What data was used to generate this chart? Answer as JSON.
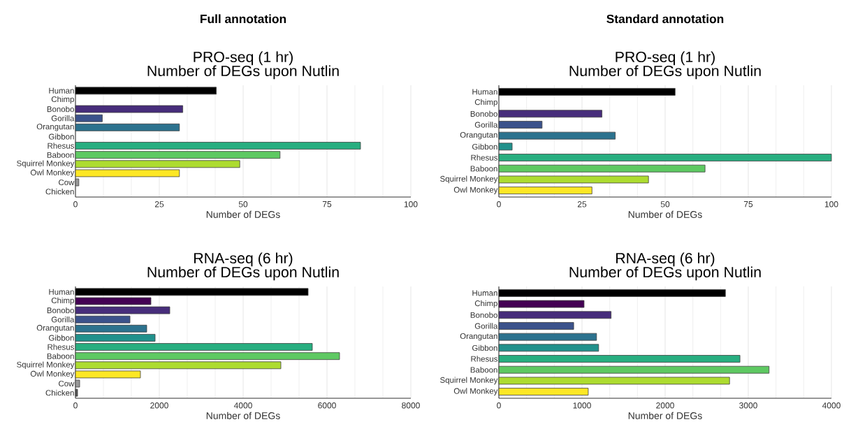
{
  "chart_data": [
    {
      "type": "bar",
      "orientation": "horizontal",
      "annotations": [
        "Full annotation"
      ],
      "title": "PRO-seq (1 hr)",
      "subtitle": "Number of DEGs upon Nutlin",
      "xlabel": "Number of DEGs",
      "categories": [
        "Human",
        "Chimp",
        "Bonobo",
        "Gorilla",
        "Orangutan",
        "Gibbon",
        "Rhesus",
        "Baboon",
        "Squirrel Monkey",
        "Owl Monkey",
        "Cow",
        "Chicken"
      ],
      "values": [
        42,
        null,
        32,
        8,
        31,
        null,
        85,
        61,
        49,
        31,
        1,
        null
      ],
      "colors": [
        "#000000",
        "#440154",
        "#472d7b",
        "#3b528b",
        "#2c728e",
        "#21918c",
        "#28ae80",
        "#5ec962",
        "#addc30",
        "#fde725",
        "#999999",
        "#555555"
      ],
      "xlim": [
        0,
        100
      ],
      "xticks": [
        0,
        25,
        50,
        75,
        100
      ],
      "grid": "x"
    },
    {
      "type": "bar",
      "orientation": "horizontal",
      "annotations": [
        "Standard annotation"
      ],
      "title": "PRO-seq (1 hr)",
      "subtitle": "Number of DEGs upon Nutlin",
      "xlabel": "Number of DEGs",
      "categories": [
        "Human",
        "Chimp",
        "Bonobo",
        "Gorilla",
        "Orangutan",
        "Gibbon",
        "Rhesus",
        "Baboon",
        "Squirrel Monkey",
        "Owl Monkey"
      ],
      "values": [
        53,
        null,
        31,
        13,
        35,
        4,
        100,
        62,
        45,
        28
      ],
      "colors": [
        "#000000",
        "#440154",
        "#472d7b",
        "#3b528b",
        "#2c728e",
        "#21918c",
        "#28ae80",
        "#5ec962",
        "#addc30",
        "#fde725"
      ],
      "xlim": [
        0,
        100
      ],
      "xticks": [
        0,
        25,
        50,
        75,
        100
      ],
      "grid": "x"
    },
    {
      "type": "bar",
      "orientation": "horizontal",
      "title": "RNA-seq (6 hr)",
      "subtitle": "Number of DEGs upon Nutlin",
      "xlabel": "Number of DEGs",
      "categories": [
        "Human",
        "Chimp",
        "Bonobo",
        "Gorilla",
        "Orangutan",
        "Gibbon",
        "Rhesus",
        "Baboon",
        "Squirrel Monkey",
        "Owl Monkey",
        "Cow",
        "Chicken"
      ],
      "values": [
        5550,
        1800,
        2250,
        1300,
        1700,
        1900,
        5650,
        6300,
        4900,
        1550,
        100,
        50
      ],
      "colors": [
        "#000000",
        "#440154",
        "#472d7b",
        "#3b528b",
        "#2c728e",
        "#21918c",
        "#28ae80",
        "#5ec962",
        "#addc30",
        "#fde725",
        "#999999",
        "#555555"
      ],
      "xlim": [
        0,
        8000
      ],
      "xticks": [
        0,
        2000,
        4000,
        6000,
        8000
      ],
      "grid": "x"
    },
    {
      "type": "bar",
      "orientation": "horizontal",
      "title": "RNA-seq (6 hr)",
      "subtitle": "Number of DEGs upon Nutlin",
      "xlabel": "Number of DEGs",
      "categories": [
        "Human",
        "Chimp",
        "Bonobo",
        "Gorilla",
        "Orangutan",
        "Gibbon",
        "Rhesus",
        "Baboon",
        "Squirrel Monkey",
        "Owl Monkey"
      ],
      "values": [
        2725,
        1025,
        1350,
        900,
        1175,
        1200,
        2900,
        3250,
        2775,
        1075
      ],
      "colors": [
        "#000000",
        "#440154",
        "#472d7b",
        "#3b528b",
        "#2c728e",
        "#21918c",
        "#28ae80",
        "#5ec962",
        "#addc30",
        "#fde725"
      ],
      "xlim": [
        0,
        4000
      ],
      "xticks": [
        0,
        1000,
        2000,
        3000,
        4000
      ],
      "grid": "x"
    }
  ]
}
